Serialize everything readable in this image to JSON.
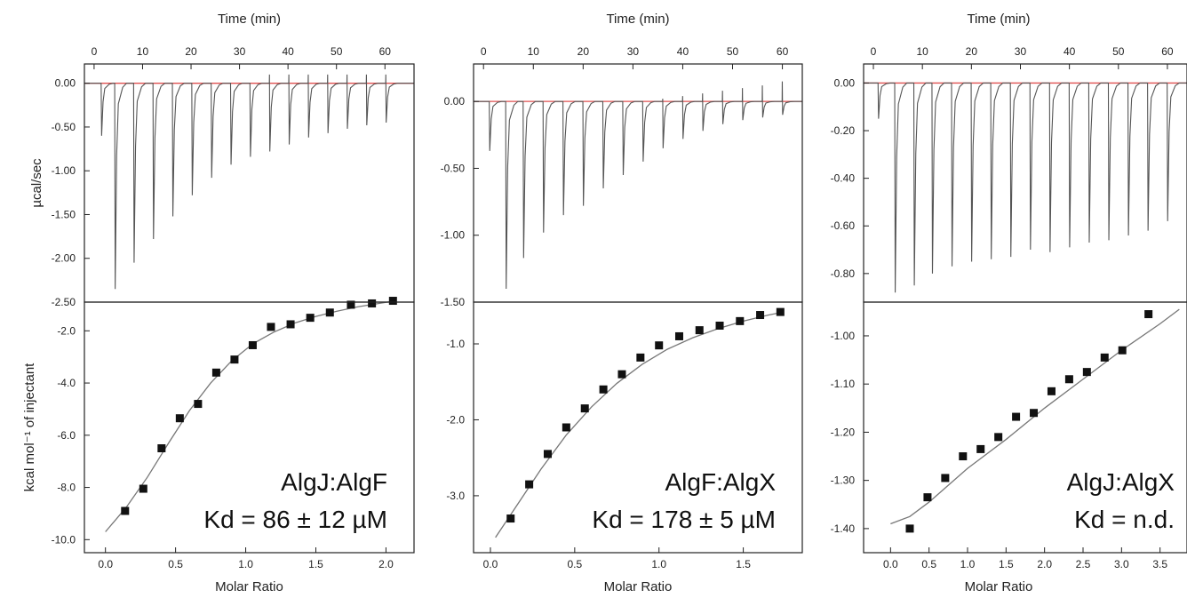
{
  "chart_data": [
    {
      "type": "line",
      "panel": "AlgJ:AlgF",
      "top": {
        "xlabel": "Time (min)",
        "ylabel": "µcal/sec",
        "xlim": [
          -2,
          66
        ],
        "ylim": [
          -2.5,
          0.22
        ],
        "xticks": [
          0,
          10,
          20,
          30,
          40,
          50,
          60
        ],
        "yticks": [
          0.0,
          -0.5,
          -1.0,
          -1.5,
          -2.0,
          -2.5
        ],
        "ytick_labels": [
          "0.00",
          "-0.50",
          "-1.00",
          "-1.50",
          "-2.00",
          "-2.50"
        ],
        "baseline": 0.0,
        "injection_times": [
          1.5,
          4.3,
          8.2,
          12.2,
          16.2,
          20.2,
          24.2,
          28.2,
          32.2,
          36.2,
          40.2,
          44.2,
          48.2,
          52.2,
          56.2,
          60.2
        ],
        "peak_values": [
          -0.6,
          -2.35,
          -2.05,
          -1.78,
          -1.52,
          -1.28,
          -1.08,
          -0.93,
          -0.84,
          -0.78,
          -0.7,
          -0.62,
          -0.57,
          -0.52,
          -0.48,
          -0.45
        ],
        "positive_spikes": [
          0,
          0,
          0,
          0,
          0,
          0,
          0,
          0,
          0,
          0.1,
          0.1,
          0.1,
          0.1,
          0.1,
          0.1,
          0.1
        ]
      },
      "bottom": {
        "xlabel": "Molar Ratio",
        "ylabel": "kcal mol⁻¹ of injectant",
        "xlim": [
          -0.15,
          2.2
        ],
        "ylim": [
          -10.5,
          -0.9
        ],
        "xticks": [
          0.0,
          0.5,
          1.0,
          1.5,
          2.0
        ],
        "xtick_labels": [
          "0.0",
          "0.5",
          "1.0",
          "1.5",
          "2.0"
        ],
        "yticks": [
          -2,
          -4,
          -6,
          -8,
          -10
        ],
        "ytick_labels": [
          "-2.0",
          "-4.0",
          "-6.0",
          "-8.0",
          "-10.0"
        ],
        "x": [
          0.14,
          0.27,
          0.4,
          0.53,
          0.66,
          0.79,
          0.92,
          1.05,
          1.18,
          1.32,
          1.46,
          1.6,
          1.75,
          1.9,
          2.05
        ],
        "y": [
          -8.9,
          -8.05,
          -6.5,
          -5.35,
          -4.8,
          -3.6,
          -3.1,
          -2.55,
          -1.85,
          -1.75,
          -1.5,
          -1.3,
          -1.0,
          -0.95,
          -0.85
        ],
        "fit_x": [
          0.0,
          0.15,
          0.3,
          0.45,
          0.6,
          0.75,
          0.9,
          1.05,
          1.2,
          1.35,
          1.5,
          1.65,
          1.8,
          1.95,
          2.07
        ],
        "fit_y": [
          -9.7,
          -8.75,
          -7.6,
          -6.3,
          -5.05,
          -4.0,
          -3.15,
          -2.5,
          -2.05,
          -1.7,
          -1.45,
          -1.25,
          -1.08,
          -0.95,
          -0.85
        ]
      },
      "annotation": {
        "line1": "AlgJ:AlgF",
        "line2": "Kd = 86 ± 12 µM"
      }
    },
    {
      "type": "line",
      "panel": "AlgF:AlgX",
      "top": {
        "xlabel": "Time (min)",
        "ylabel": "",
        "xlim": [
          -2,
          64
        ],
        "ylim": [
          -1.5,
          0.28
        ],
        "xticks": [
          0,
          10,
          20,
          30,
          40,
          50,
          60
        ],
        "yticks": [
          0.0,
          -0.5,
          -1.0,
          -1.5
        ],
        "ytick_labels": [
          "0.00",
          "-0.50",
          "-1.00",
          "-1.50"
        ],
        "baseline": 0.0,
        "injection_times": [
          1.2,
          4.5,
          8.0,
          12.0,
          16.0,
          20.0,
          24.0,
          28.0,
          32.0,
          36.0,
          40.0,
          44.0,
          48.0,
          52.0,
          56.0,
          60.0
        ],
        "peak_values": [
          -0.37,
          -1.4,
          -1.17,
          -0.98,
          -0.85,
          -0.78,
          -0.65,
          -0.55,
          -0.45,
          -0.35,
          -0.28,
          -0.22,
          -0.17,
          -0.14,
          -0.12,
          -0.1
        ],
        "positive_spikes": [
          0,
          0,
          0,
          0,
          0,
          0,
          0,
          0,
          0,
          0.02,
          0.04,
          0.06,
          0.08,
          0.1,
          0.12,
          0.15
        ]
      },
      "bottom": {
        "xlabel": "Molar Ratio",
        "ylabel": "",
        "xlim": [
          -0.1,
          1.85
        ],
        "ylim": [
          -3.75,
          -0.45
        ],
        "xticks": [
          0.0,
          0.5,
          1.0,
          1.5
        ],
        "xtick_labels": [
          "0.0",
          "0.5",
          "1.0",
          "1.5"
        ],
        "yticks": [
          -1,
          -2,
          -3
        ],
        "ytick_labels": [
          "-1.0",
          "-2.0",
          "-3.0"
        ],
        "x": [
          0.12,
          0.23,
          0.34,
          0.45,
          0.56,
          0.67,
          0.78,
          0.89,
          1.0,
          1.12,
          1.24,
          1.36,
          1.48,
          1.6,
          1.72
        ],
        "y": [
          -3.3,
          -2.85,
          -2.45,
          -2.1,
          -1.85,
          -1.6,
          -1.4,
          -1.18,
          -1.02,
          -0.9,
          -0.82,
          -0.76,
          -0.7,
          -0.62,
          -0.58
        ],
        "fit_x": [
          0.03,
          0.15,
          0.3,
          0.45,
          0.6,
          0.75,
          0.9,
          1.05,
          1.2,
          1.35,
          1.5,
          1.65,
          1.74
        ],
        "fit_y": [
          -3.55,
          -3.15,
          -2.65,
          -2.2,
          -1.83,
          -1.52,
          -1.27,
          -1.07,
          -0.92,
          -0.8,
          -0.7,
          -0.62,
          -0.58
        ]
      },
      "annotation": {
        "line1": "AlgF:AlgX",
        "line2": "Kd = 178 ± 5 µM"
      }
    },
    {
      "type": "line",
      "panel": "AlgJ:AlgX",
      "top": {
        "xlabel": "Time (min)",
        "ylabel": "",
        "xlim": [
          -2,
          64
        ],
        "ylim": [
          -0.92,
          0.08
        ],
        "xticks": [
          0,
          10,
          20,
          30,
          40,
          50,
          60
        ],
        "yticks": [
          0.0,
          -0.2,
          -0.4,
          -0.6,
          -0.8
        ],
        "ytick_labels": [
          "0.00",
          "-0.20",
          "-0.40",
          "-0.60",
          "-0.80"
        ],
        "baseline": 0.0,
        "injection_times": [
          1.0,
          4.4,
          8.3,
          12.0,
          16.0,
          20.0,
          24.0,
          28.0,
          32.0,
          36.0,
          40.0,
          44.0,
          48.0,
          52.0,
          56.0,
          60.0
        ],
        "peak_values": [
          -0.15,
          -0.88,
          -0.85,
          -0.8,
          -0.77,
          -0.75,
          -0.74,
          -0.73,
          -0.7,
          -0.71,
          -0.69,
          -0.67,
          -0.66,
          -0.64,
          -0.62,
          -0.58
        ],
        "positive_spikes": [
          0,
          0,
          0,
          0,
          0,
          0,
          0,
          0,
          0,
          0,
          0,
          0,
          0,
          0,
          0,
          0
        ]
      },
      "bottom": {
        "xlabel": "Molar Ratio",
        "ylabel": "",
        "xlim": [
          -0.35,
          3.85
        ],
        "ylim": [
          -1.45,
          -0.93
        ],
        "xticks": [
          0.0,
          0.5,
          1.0,
          1.5,
          2.0,
          2.5,
          3.0,
          3.5
        ],
        "xtick_labels": [
          "0.0",
          "0.5",
          "1.0",
          "1.5",
          "2.0",
          "2.5",
          "3.0",
          "3.5"
        ],
        "yticks": [
          -1.0,
          -1.1,
          -1.2,
          -1.3,
          -1.4
        ],
        "ytick_labels": [
          "-1.00",
          "-1.10",
          "-1.20",
          "-1.30",
          "-1.40"
        ],
        "x": [
          0.25,
          0.48,
          0.71,
          0.94,
          1.17,
          1.4,
          1.63,
          1.86,
          2.09,
          2.32,
          2.55,
          2.78,
          3.01,
          3.35
        ],
        "y": [
          -1.4,
          -1.335,
          -1.295,
          -1.25,
          -1.235,
          -1.21,
          -1.168,
          -1.16,
          -1.115,
          -1.09,
          -1.075,
          -1.045,
          -1.03,
          -0.955
        ],
        "fit_x": [
          0.0,
          0.25,
          0.5,
          0.75,
          1.0,
          1.5,
          2.0,
          2.5,
          3.0,
          3.5,
          3.75
        ],
        "fit_y": [
          -1.39,
          -1.375,
          -1.345,
          -1.31,
          -1.275,
          -1.215,
          -1.15,
          -1.09,
          -1.03,
          -0.975,
          -0.945
        ]
      },
      "annotation": {
        "line1": "AlgJ:AlgX",
        "line2": "Kd = n.d."
      }
    }
  ]
}
